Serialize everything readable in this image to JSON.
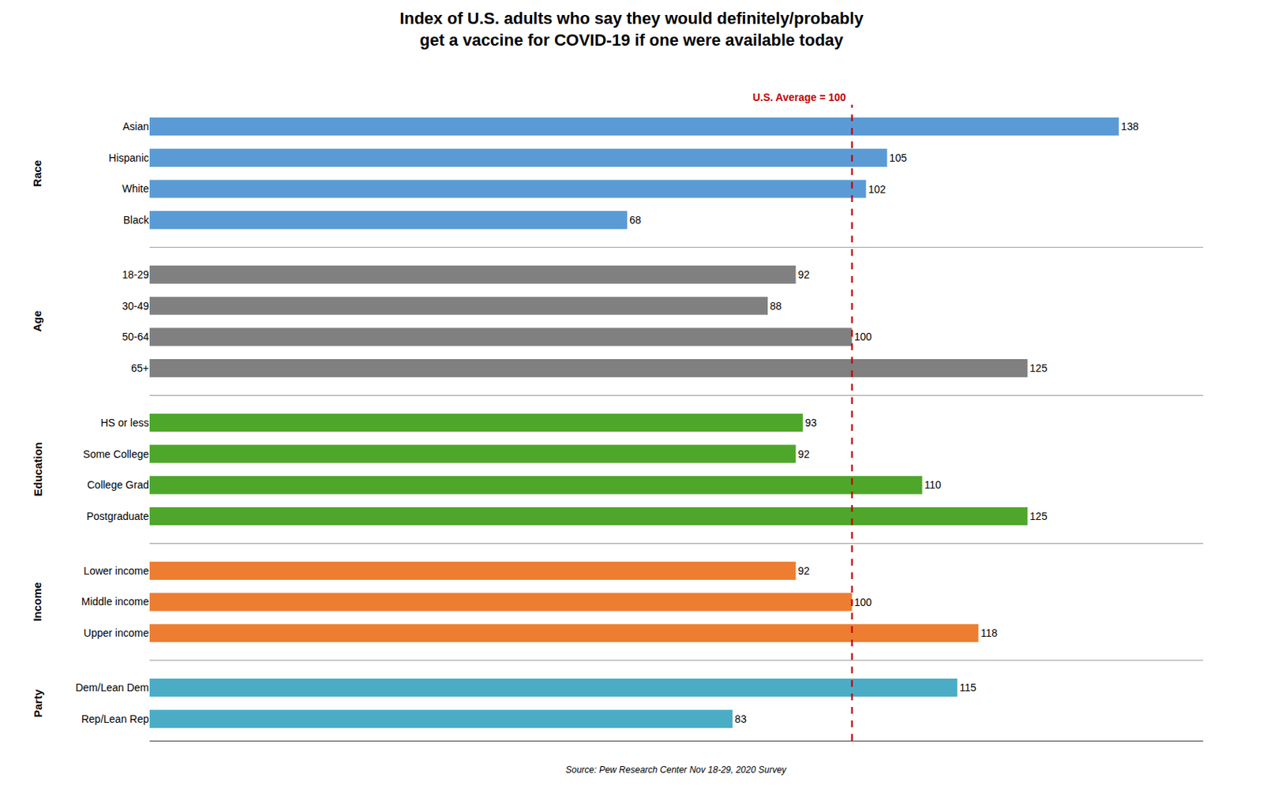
{
  "chart_data": {
    "type": "bar",
    "orientation": "horizontal",
    "title": "Index of U.S. adults who say they would definitely/probably\nget a vaccine for COVID-19 if one were available today",
    "groups": [
      {
        "label": "Race",
        "color": "#5B9BD5",
        "categories": [
          "Asian",
          "Hispanic",
          "White",
          "Black"
        ],
        "values": [
          138,
          105,
          102,
          68
        ]
      },
      {
        "label": "Age",
        "color": "#808080",
        "categories": [
          "18-29",
          "30-49",
          "50-64",
          "65+"
        ],
        "values": [
          92,
          88,
          100,
          125
        ]
      },
      {
        "label": "Education",
        "color": "#4EA72A",
        "categories": [
          "HS or less",
          "Some College",
          "College Grad",
          "Postgraduate"
        ],
        "values": [
          93,
          92,
          110,
          125
        ]
      },
      {
        "label": "Income",
        "color": "#ED7D31",
        "categories": [
          "Lower income",
          "Middle income",
          "Upper income"
        ],
        "values": [
          92,
          100,
          118
        ]
      },
      {
        "label": "Party",
        "color": "#4BACC6",
        "categories": [
          "Dem/Lean Dem",
          "Rep/Lean Rep"
        ],
        "values": [
          115,
          83
        ]
      }
    ],
    "xlim": [
      0,
      150
    ],
    "data_labels": true,
    "tick_labels": "y",
    "grid": false,
    "reference_line": {
      "value": 100,
      "label": "U.S. Average = 100",
      "color": "#C00000"
    },
    "source": "Source: Pew Research Center Nov 18-29, 2020 Survey"
  }
}
